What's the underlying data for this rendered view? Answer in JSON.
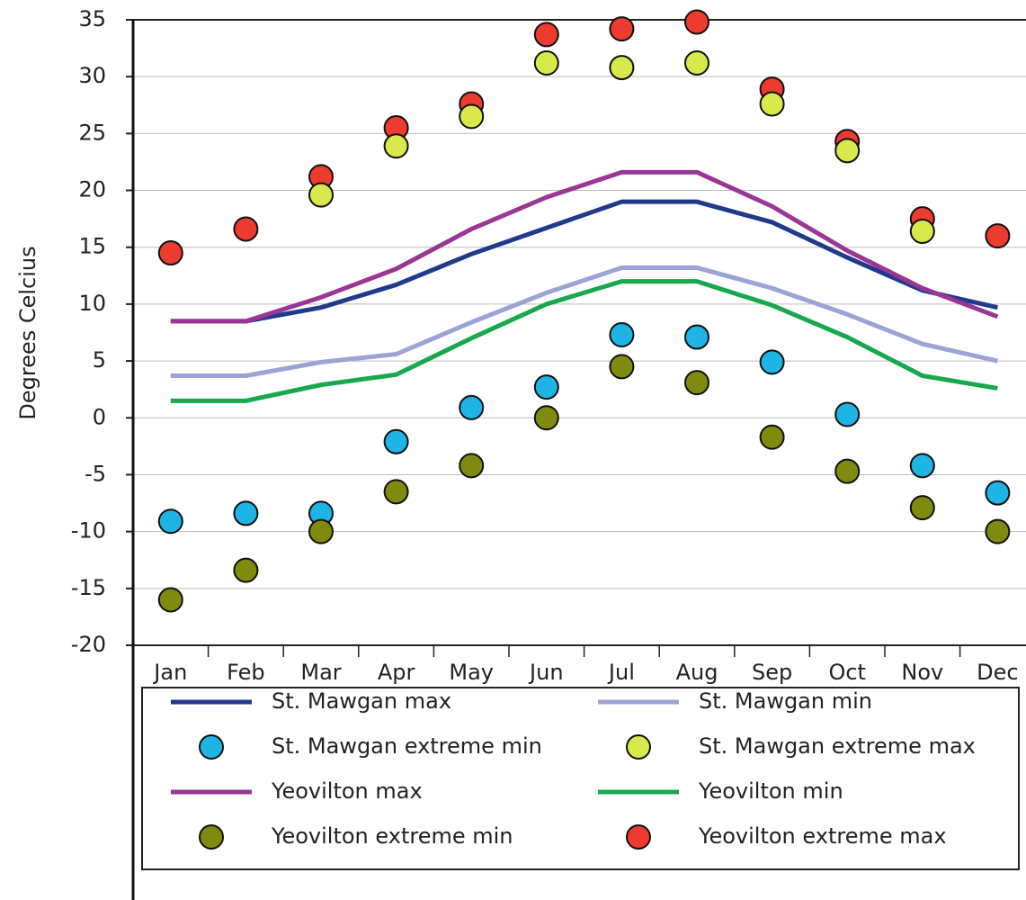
{
  "chart_data": {
    "type": "line",
    "y_label": "Degrees Celcius",
    "categories": [
      "Jan",
      "Feb",
      "Mar",
      "Apr",
      "May",
      "Jun",
      "Jul",
      "Aug",
      "Sep",
      "Oct",
      "Nov",
      "Dec"
    ],
    "ylim": [
      -20,
      35
    ],
    "yticks": [
      -20,
      -15,
      -10,
      -5,
      0,
      5,
      10,
      15,
      20,
      25,
      30,
      35
    ],
    "grid": true,
    "series": [
      {
        "name": "St. Mawgan max",
        "type": "line",
        "color": "#1f3a8a",
        "values": [
          8.5,
          8.5,
          9.7,
          11.7,
          14.4,
          16.7,
          19.0,
          19.0,
          17.2,
          14.1,
          11.2,
          9.7
        ]
      },
      {
        "name": "St. Mawgan min",
        "type": "line",
        "color": "#9aa3d6",
        "values": [
          3.7,
          3.7,
          4.9,
          5.6,
          8.4,
          11.0,
          13.2,
          13.2,
          11.4,
          9.1,
          6.5,
          5.0
        ]
      },
      {
        "name": "St. Mawgan extreme min",
        "type": "scatter",
        "color": "#1eb4e6",
        "values": [
          -9.1,
          -8.4,
          -8.4,
          -2.1,
          0.9,
          2.7,
          7.3,
          7.1,
          4.9,
          0.3,
          -4.2,
          -6.6
        ]
      },
      {
        "name": "St. Mawgan extreme max",
        "type": "scatter",
        "color": "#d9e84a",
        "values": [
          null,
          null,
          19.6,
          23.9,
          26.5,
          31.2,
          30.8,
          31.2,
          27.6,
          23.5,
          16.4,
          null
        ]
      },
      {
        "name": "Yeovilton max",
        "type": "line",
        "color": "#9a3596",
        "values": [
          8.5,
          8.5,
          10.6,
          13.1,
          16.6,
          19.4,
          21.6,
          21.6,
          18.6,
          14.7,
          11.4,
          8.9
        ]
      },
      {
        "name": "Yeovilton min",
        "type": "line",
        "color": "#16a84a",
        "values": [
          1.5,
          1.5,
          2.9,
          3.8,
          7.0,
          10.0,
          12.0,
          12.0,
          9.9,
          7.1,
          3.7,
          2.6
        ]
      },
      {
        "name": "Yeovilton extreme min",
        "type": "scatter",
        "color": "#808a0e",
        "values": [
          -16.0,
          -13.4,
          -10.0,
          -6.5,
          -4.2,
          0,
          4.5,
          3.1,
          -1.7,
          -4.7,
          -7.9,
          -10.0
        ]
      },
      {
        "name": "Yeovilton extreme max",
        "type": "scatter",
        "color": "#ee3b2f",
        "values": [
          14.5,
          16.6,
          21.2,
          25.5,
          27.6,
          33.7,
          34.2,
          34.8,
          28.9,
          24.3,
          17.5,
          16.0
        ]
      }
    ]
  }
}
